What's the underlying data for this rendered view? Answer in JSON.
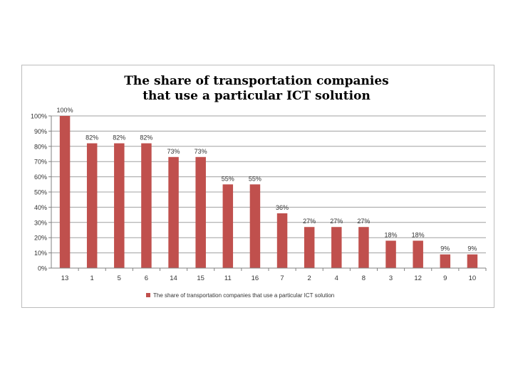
{
  "chart_data": {
    "type": "bar",
    "title_lines": [
      "The share of transportation companies",
      "that use a particular ICT solution"
    ],
    "categories": [
      "13",
      "1",
      "5",
      "6",
      "14",
      "15",
      "11",
      "16",
      "7",
      "2",
      "4",
      "8",
      "3",
      "12",
      "9",
      "10"
    ],
    "series": [
      {
        "name": "The share of transportation companies that use a particular ICT solution",
        "values": [
          100,
          82,
          82,
          82,
          73,
          73,
          55,
          55,
          36,
          27,
          27,
          27,
          18,
          18,
          9,
          9
        ],
        "labels": [
          "100%",
          "82%",
          "82%",
          "82%",
          "73%",
          "73%",
          "55%",
          "55%",
          "36%",
          "27%",
          "27%",
          "27%",
          "18%",
          "18%",
          "9%",
          "9%"
        ],
        "color": "#c0504d"
      }
    ],
    "yticks": [
      "0%",
      "10%",
      "20%",
      "30%",
      "40%",
      "50%",
      "60%",
      "70%",
      "80%",
      "90%",
      "100%"
    ],
    "ylim": [
      0,
      100
    ],
    "grid": true,
    "legend": "bottom-center",
    "xlabel": "",
    "ylabel": ""
  }
}
